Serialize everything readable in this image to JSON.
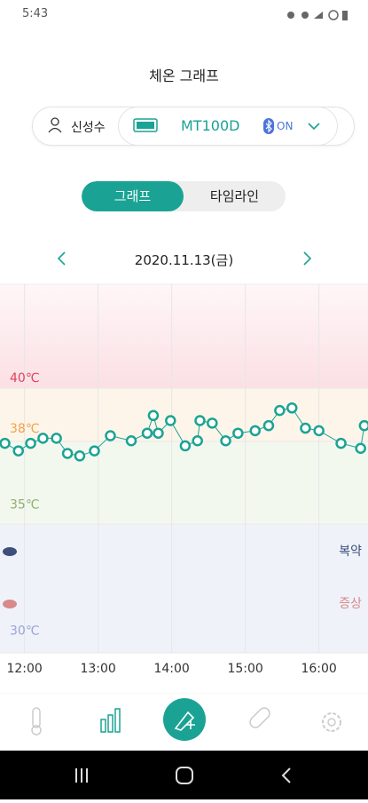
{
  "status_bar": {
    "time": "5:43"
  },
  "header": {
    "title": "체온 그래프"
  },
  "device": {
    "user": "신성수",
    "model": "MT100D",
    "bluetooth": "ON"
  },
  "tabs": [
    "그래프",
    "타임라인"
  ],
  "date": "2020.11.13(금)",
  "chart_data": {
    "type": "line",
    "x": [
      704,
      715,
      725,
      735,
      746,
      755,
      765,
      777,
      790,
      807,
      820,
      825,
      829,
      839,
      851,
      861,
      863,
      873,
      884,
      894,
      908,
      919,
      928,
      938,
      949,
      960,
      978,
      994,
      997
    ],
    "values": [
      37.4,
      37.1,
      37.4,
      37.6,
      37.6,
      37.0,
      36.9,
      37.1,
      37.7,
      37.5,
      37.8,
      38.5,
      37.8,
      38.3,
      37.3,
      37.5,
      38.3,
      38.2,
      37.5,
      37.8,
      37.9,
      38.1,
      38.7,
      38.8,
      38.0,
      37.9,
      37.4,
      37.2,
      38.1
    ],
    "color": "#1aa394",
    "xlim": [
      700,
      1000
    ],
    "ylim": [
      29.1,
      43.7
    ],
    "xticks": [
      {
        "value": 720,
        "label": "12:00"
      },
      {
        "value": 780,
        "label": "13:00"
      },
      {
        "value": 840,
        "label": "14:00"
      },
      {
        "value": 900,
        "label": "15:00"
      },
      {
        "value": 960,
        "label": "16:00"
      }
    ],
    "yticks": [
      {
        "value": 40,
        "label": "40℃"
      },
      {
        "value": 38,
        "label": "38℃"
      },
      {
        "value": 35,
        "label": "35℃"
      },
      {
        "value": 30,
        "label": "30℃"
      }
    ],
    "annotations": [
      "복약",
      "증상"
    ],
    "grid": true
  }
}
